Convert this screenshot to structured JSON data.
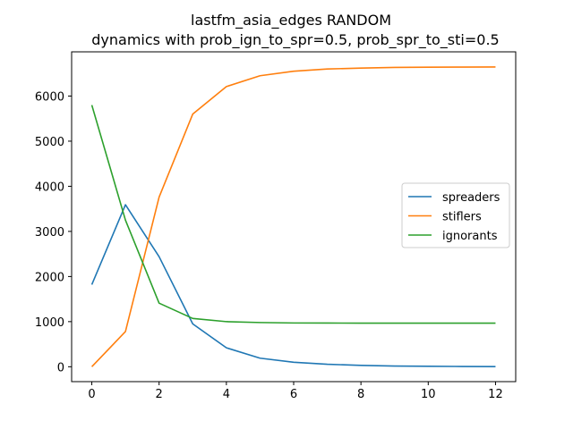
{
  "chart_data": {
    "type": "line",
    "title": "lastfm_asia_edges RANDOM",
    "subtitle": "dynamics with prob_ign_to_spr=0.5, prob_spr_to_sti=0.5",
    "xlabel": "",
    "ylabel": "",
    "xlim": [
      -0.6,
      12.6
    ],
    "ylim": [
      -330,
      6980
    ],
    "xticks": [
      0,
      2,
      4,
      6,
      8,
      10,
      12
    ],
    "yticks": [
      0,
      1000,
      2000,
      3000,
      4000,
      5000,
      6000
    ],
    "grid": false,
    "legend_position": "center-right",
    "x": [
      0,
      1,
      2,
      3,
      4,
      5,
      6,
      7,
      8,
      9,
      10,
      11,
      12
    ],
    "series": [
      {
        "name": "spreaders",
        "color": "#1f77b4",
        "values": [
          1820,
          3590,
          2440,
          950,
          420,
          190,
          100,
          55,
          30,
          15,
          10,
          6,
          3
        ]
      },
      {
        "name": "stiflers",
        "color": "#ff7f0e",
        "values": [
          0,
          780,
          3760,
          5600,
          6210,
          6450,
          6550,
          6600,
          6620,
          6635,
          6640,
          6642,
          6645
        ]
      },
      {
        "name": "ignorants",
        "color": "#2ca02c",
        "values": [
          5800,
          3250,
          1410,
          1070,
          1000,
          980,
          970,
          968,
          967,
          966,
          966,
          966,
          966
        ]
      }
    ]
  }
}
